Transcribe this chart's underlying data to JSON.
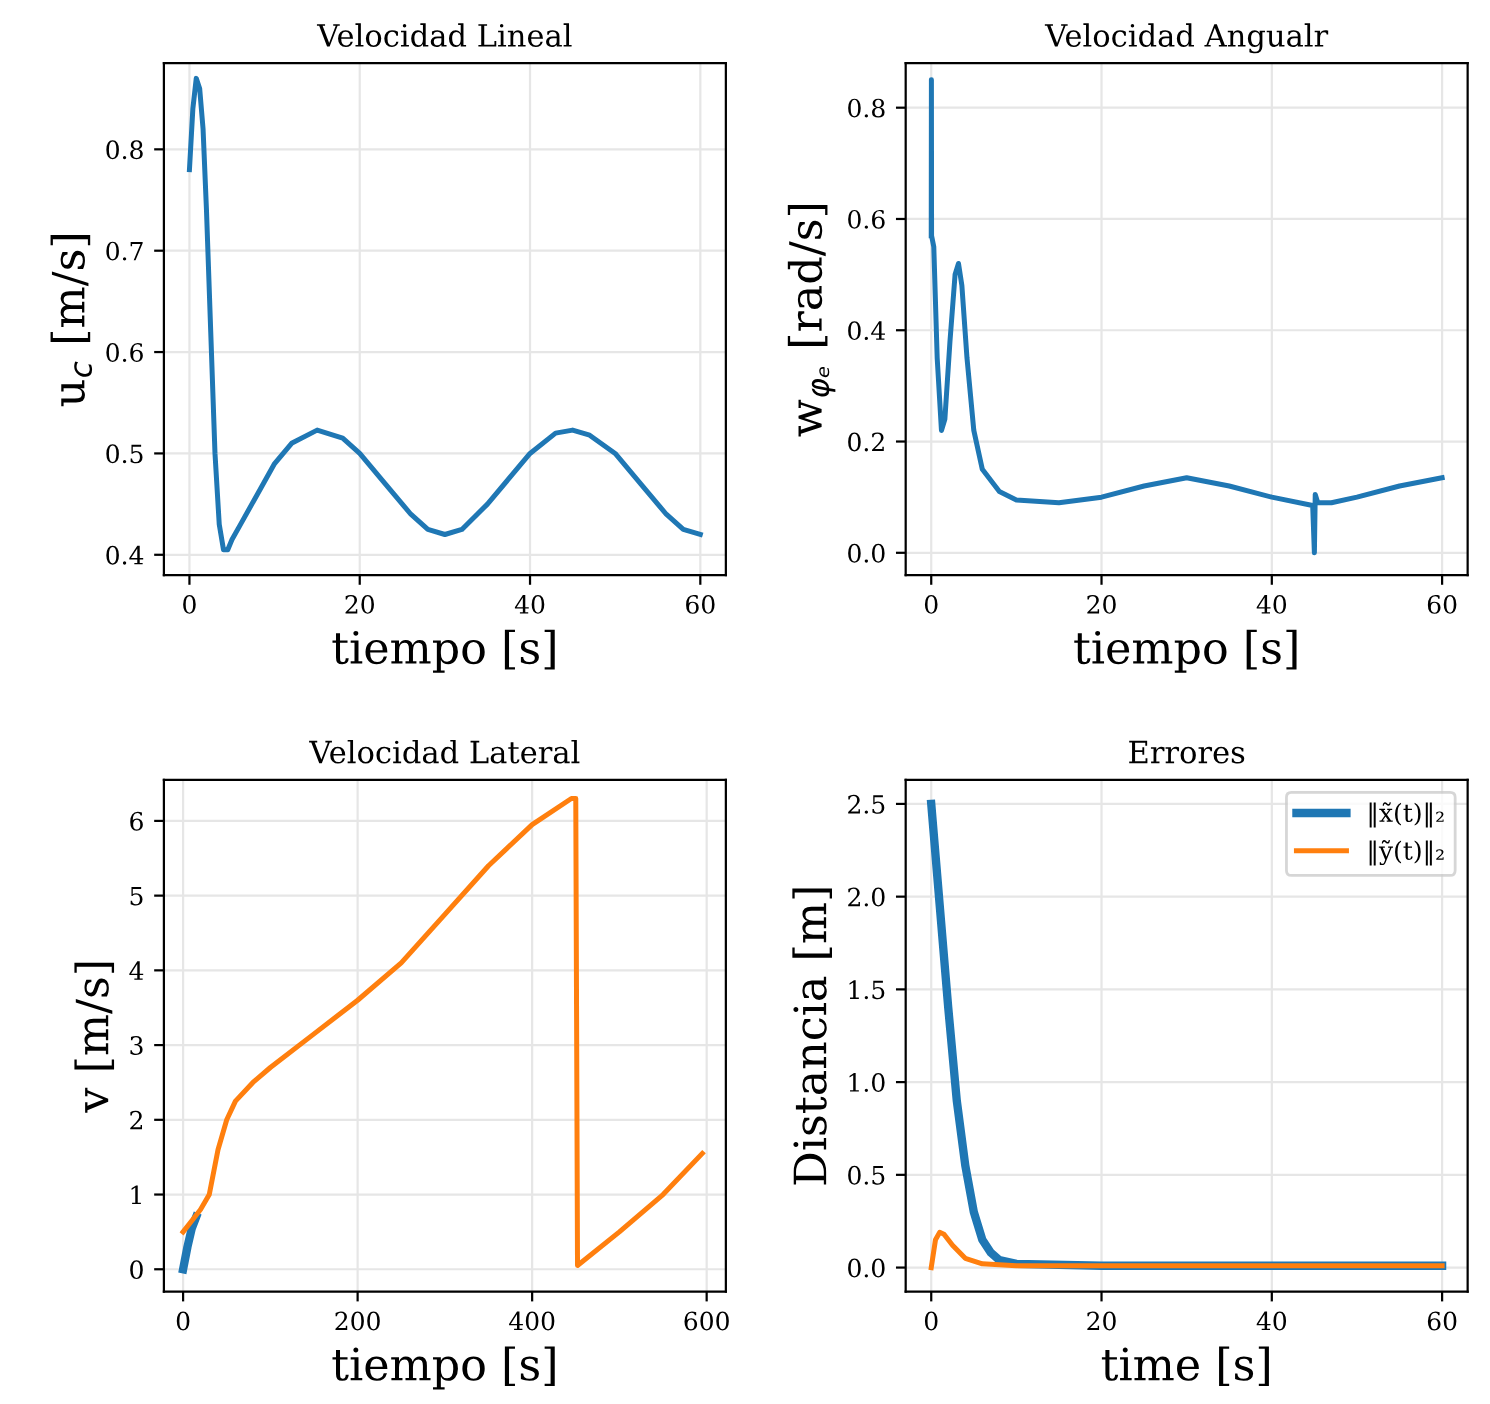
{
  "chart_data": [
    {
      "type": "line",
      "title": "Velocidad Lineal",
      "xlabel": "tiempo [s]",
      "ylabel": "u$_{c}$ [m/s]",
      "xlim": [
        -3,
        63
      ],
      "xticks": [
        0,
        20,
        40,
        60
      ],
      "ylim": [
        0.38,
        0.885
      ],
      "yticks": [
        0.4,
        0.5,
        0.6,
        0.7,
        0.8
      ],
      "grid": true,
      "series": [
        {
          "color": "#1f77b4",
          "x": [
            0,
            0.4,
            0.8,
            1.2,
            1.6,
            2,
            2.5,
            3,
            3.5,
            4,
            4.5,
            5,
            6,
            8,
            10,
            12,
            15,
            18,
            20,
            23,
            26,
            28,
            30,
            32,
            35,
            38,
            40,
            43,
            45,
            47,
            50,
            53,
            56,
            58,
            60
          ],
          "values": [
            0.78,
            0.84,
            0.87,
            0.86,
            0.82,
            0.74,
            0.62,
            0.5,
            0.43,
            0.405,
            0.405,
            0.415,
            0.43,
            0.46,
            0.49,
            0.51,
            0.523,
            0.515,
            0.5,
            0.47,
            0.44,
            0.425,
            0.42,
            0.425,
            0.45,
            0.48,
            0.5,
            0.52,
            0.523,
            0.518,
            0.5,
            0.47,
            0.44,
            0.425,
            0.42
          ]
        }
      ]
    },
    {
      "type": "line",
      "title": "Velocidad Angualr",
      "xlabel": "tiempo [s]",
      "ylabel": "w$_{φₑ}$ [rad/s]",
      "xlim": [
        -3,
        63
      ],
      "xticks": [
        0,
        20,
        40,
        60
      ],
      "ylim": [
        -0.04,
        0.88
      ],
      "yticks": [
        {
          "value": 0,
          "label": "0.0"
        },
        0.2,
        0.4,
        0.6,
        0.8
      ],
      "grid": true,
      "series": [
        {
          "color": "#1f77b4",
          "x": [
            0,
            0.02,
            0.04,
            0.3,
            0.7,
            1.2,
            1.6,
            2.2,
            2.8,
            3.2,
            3.6,
            4.2,
            5,
            6,
            8,
            10,
            15,
            20,
            25,
            30,
            35,
            40,
            44.8,
            45,
            45.1,
            45.4,
            47,
            50,
            55,
            60
          ],
          "values": [
            0.57,
            0.85,
            0.57,
            0.55,
            0.35,
            0.22,
            0.24,
            0.38,
            0.5,
            0.52,
            0.48,
            0.35,
            0.22,
            0.15,
            0.11,
            0.095,
            0.09,
            0.1,
            0.12,
            0.135,
            0.12,
            0.1,
            0.085,
            0.0,
            0.105,
            0.09,
            0.09,
            0.1,
            0.12,
            0.135
          ]
        }
      ]
    },
    {
      "type": "line",
      "title": "Velocidad Lateral",
      "xlabel": "tiempo [s]",
      "ylabel": "v [m/s]",
      "xlim": [
        -22,
        622
      ],
      "xticks": [
        0,
        200,
        400,
        600
      ],
      "ylim": [
        -0.3,
        6.55
      ],
      "yticks": [
        0,
        1,
        2,
        3,
        4,
        5,
        6
      ],
      "grid": true,
      "series": [
        {
          "color": "#1f77b4",
          "x": [
            0,
            5,
            10,
            15
          ],
          "values": [
            0,
            0.3,
            0.55,
            0.7
          ]
        },
        {
          "color": "#ff7f0e",
          "x": [
            0,
            10,
            20,
            30,
            40,
            50,
            60,
            80,
            100,
            150,
            200,
            250,
            300,
            350,
            400,
            445,
            450,
            452,
            500,
            550,
            595
          ],
          "values": [
            0.5,
            0.65,
            0.8,
            1.0,
            1.6,
            2.0,
            2.25,
            2.5,
            2.7,
            3.15,
            3.6,
            4.1,
            4.75,
            5.4,
            5.95,
            6.3,
            6.3,
            0.05,
            0.5,
            1.0,
            1.55
          ]
        }
      ]
    },
    {
      "type": "line",
      "title": "Errores",
      "xlabel": "time [s]",
      "ylabel": "Distancia [m]",
      "xlim": [
        -3,
        63
      ],
      "xticks": [
        0,
        20,
        40,
        60
      ],
      "ylim": [
        -0.13,
        2.63
      ],
      "yticks": [
        {
          "value": 0,
          "label": "0.0"
        },
        0.5,
        {
          "value": 1,
          "label": "1.0"
        },
        1.5,
        {
          "value": 2,
          "label": "2.0"
        },
        2.5
      ],
      "grid": true,
      "legend": "top right",
      "series": [
        {
          "name": "‖x̃(t)‖₂",
          "color": "#1f77b4",
          "x": [
            0,
            1,
            2,
            3,
            4,
            5,
            6,
            7,
            8,
            10,
            20,
            60
          ],
          "values": [
            2.5,
            1.95,
            1.4,
            0.9,
            0.55,
            0.3,
            0.15,
            0.08,
            0.04,
            0.02,
            0.01,
            0.01
          ]
        },
        {
          "name": "‖ỹ(t)‖₂",
          "color": "#ff7f0e",
          "x": [
            0,
            0.5,
            1,
            1.5,
            2.5,
            4,
            6,
            10,
            60
          ],
          "values": [
            0.0,
            0.15,
            0.19,
            0.18,
            0.12,
            0.05,
            0.02,
            0.01,
            0.01
          ]
        }
      ]
    }
  ]
}
